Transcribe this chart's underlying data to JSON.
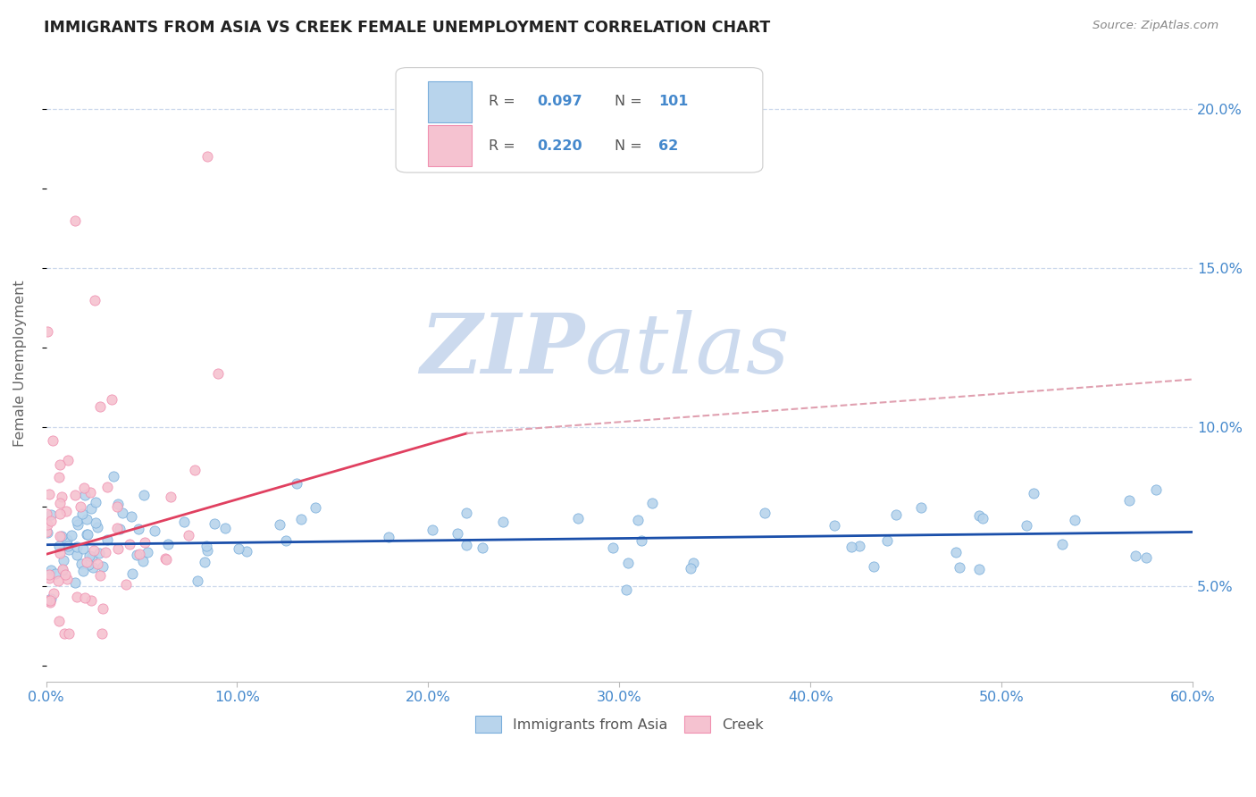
{
  "title": "IMMIGRANTS FROM ASIA VS CREEK FEMALE UNEMPLOYMENT CORRELATION CHART",
  "source_text": "Source: ZipAtlas.com",
  "ylabel": "Female Unemployment",
  "legend_entries": [
    {
      "label": "Immigrants from Asia",
      "R": "0.097",
      "N": "101",
      "color_face": "#b8d4ec",
      "color_edge": "#7aaedb"
    },
    {
      "label": "Creek",
      "R": "0.220",
      "N": "62",
      "color_face": "#f5c2d0",
      "color_edge": "#f090b0"
    }
  ],
  "trend_blue_color": "#1a4faa",
  "trend_pink_color": "#e04060",
  "trend_pink_dashed_color": "#e0a0b0",
  "watermark_zip": "ZIP",
  "watermark_atlas": "atlas",
  "watermark_color": "#ccdaee",
  "background_color": "#ffffff",
  "grid_color": "#ccd8ec",
  "title_color": "#222222",
  "axis_tick_color": "#4488cc",
  "ylabel_color": "#666666",
  "source_color": "#888888",
  "xlim": [
    0,
    60
  ],
  "ylim": [
    2,
    22
  ],
  "ytick_vals": [
    5.0,
    10.0,
    15.0,
    20.0
  ],
  "xtick_vals": [
    0,
    10,
    20,
    30,
    40,
    50,
    60
  ],
  "figsize": [
    14.06,
    8.92
  ],
  "dpi": 100,
  "blue_n": 101,
  "pink_n": 62
}
